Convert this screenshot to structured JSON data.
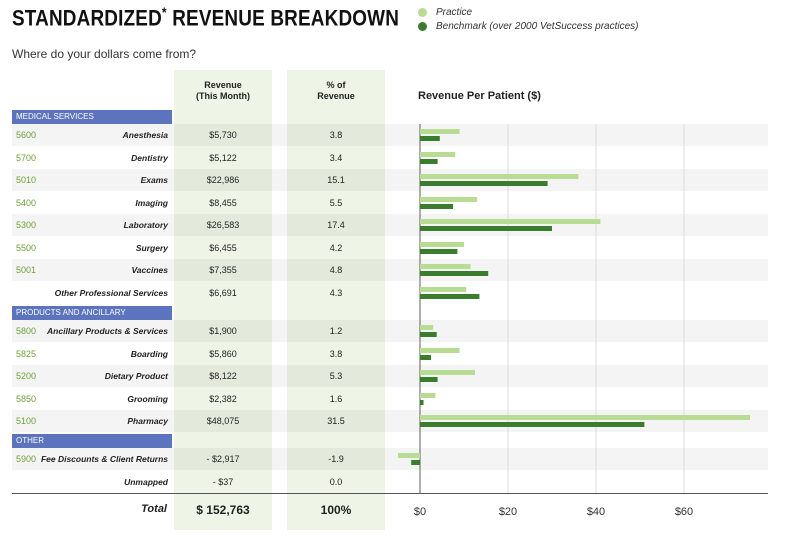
{
  "header": {
    "title_main": "STANDARDIZED",
    "title_star": "*",
    "title_rest": " REVENUE BREAKDOWN",
    "subtitle": "Where do your dollars come from?"
  },
  "legend": {
    "practice": "Practice",
    "benchmark": "Benchmark (over 2000 VetSuccess practices)"
  },
  "columns": {
    "revenue_line1": "Revenue",
    "revenue_line2": "(This Month)",
    "pct_line1": "% of",
    "pct_line2": "Revenue",
    "rpp": "Revenue Per Patient ($)"
  },
  "colors": {
    "practice": "#b9dc95",
    "benchmark": "#3b7d2f",
    "section_bg": "#5b74bd",
    "code_text": "#6fa038",
    "column_bg": "#eef5e6"
  },
  "sections": [
    {
      "label": "MEDICAL SERVICES"
    },
    {
      "label": "PRODUCTS AND ANCILLARY"
    },
    {
      "label": "OTHER"
    }
  ],
  "rows": [
    {
      "code": "5600",
      "name": "Anesthesia",
      "revenue": "$5,730",
      "pct": "3.8"
    },
    {
      "code": "5700",
      "name": "Dentistry",
      "revenue": "$5,122",
      "pct": "3.4"
    },
    {
      "code": "5010",
      "name": "Exams",
      "revenue": "$22,986",
      "pct": "15.1"
    },
    {
      "code": "5400",
      "name": "Imaging",
      "revenue": "$8,455",
      "pct": "5.5"
    },
    {
      "code": "5300",
      "name": "Laboratory",
      "revenue": "$26,583",
      "pct": "17.4"
    },
    {
      "code": "5500",
      "name": "Surgery",
      "revenue": "$6,455",
      "pct": "4.2"
    },
    {
      "code": "5001",
      "name": "Vaccines",
      "revenue": "$7,355",
      "pct": "4.8"
    },
    {
      "code": "",
      "name": "Other Professional Services",
      "revenue": "$6,691",
      "pct": "4.3"
    },
    {
      "code": "5800",
      "name": "Ancillary Products & Services",
      "revenue": "$1,900",
      "pct": "1.2"
    },
    {
      "code": "5825",
      "name": "Boarding",
      "revenue": "$5,860",
      "pct": "3.8"
    },
    {
      "code": "5200",
      "name": "Dietary Product",
      "revenue": "$8,122",
      "pct": "5.3"
    },
    {
      "code": "5850",
      "name": "Grooming",
      "revenue": "$2,382",
      "pct": "1.6"
    },
    {
      "code": "5100",
      "name": "Pharmacy",
      "revenue": "$48,075",
      "pct": "31.5"
    },
    {
      "code": "5900",
      "name": "Fee Discounts & Client Returns",
      "revenue": "- $2,917",
      "pct": "-1.9"
    },
    {
      "code": "",
      "name": "Unmapped",
      "revenue": "- $37",
      "pct": "0.0"
    }
  ],
  "total": {
    "label": "Total",
    "revenue": "$ 152,763",
    "pct": "100%"
  },
  "chart_data": {
    "type": "bar",
    "orientation": "horizontal",
    "title": "Revenue Per Patient ($)",
    "categories": [
      "Anesthesia",
      "Dentistry",
      "Exams",
      "Imaging",
      "Laboratory",
      "Surgery",
      "Vaccines",
      "Other Professional Services",
      "Ancillary Products & Services",
      "Boarding",
      "Dietary Product",
      "Grooming",
      "Pharmacy",
      "Fee Discounts & Client Returns",
      "Unmapped"
    ],
    "series": [
      {
        "name": "Practice",
        "values": [
          9,
          8,
          36,
          13,
          41,
          10,
          11.5,
          10.5,
          3,
          9,
          12.5,
          3.5,
          75,
          -5,
          0
        ]
      },
      {
        "name": "Benchmark (over 2000 VetSuccess practices)",
        "values": [
          4.5,
          4,
          29,
          7.5,
          30,
          8.5,
          15.5,
          13.5,
          3.8,
          2.5,
          4,
          0.8,
          51,
          -2,
          0
        ]
      }
    ],
    "xlim": [
      -5,
      80
    ],
    "ticks": [
      0,
      20,
      40,
      60
    ],
    "tick_labels": [
      "$0",
      "$20",
      "$40",
      "$60"
    ],
    "grid": true
  }
}
